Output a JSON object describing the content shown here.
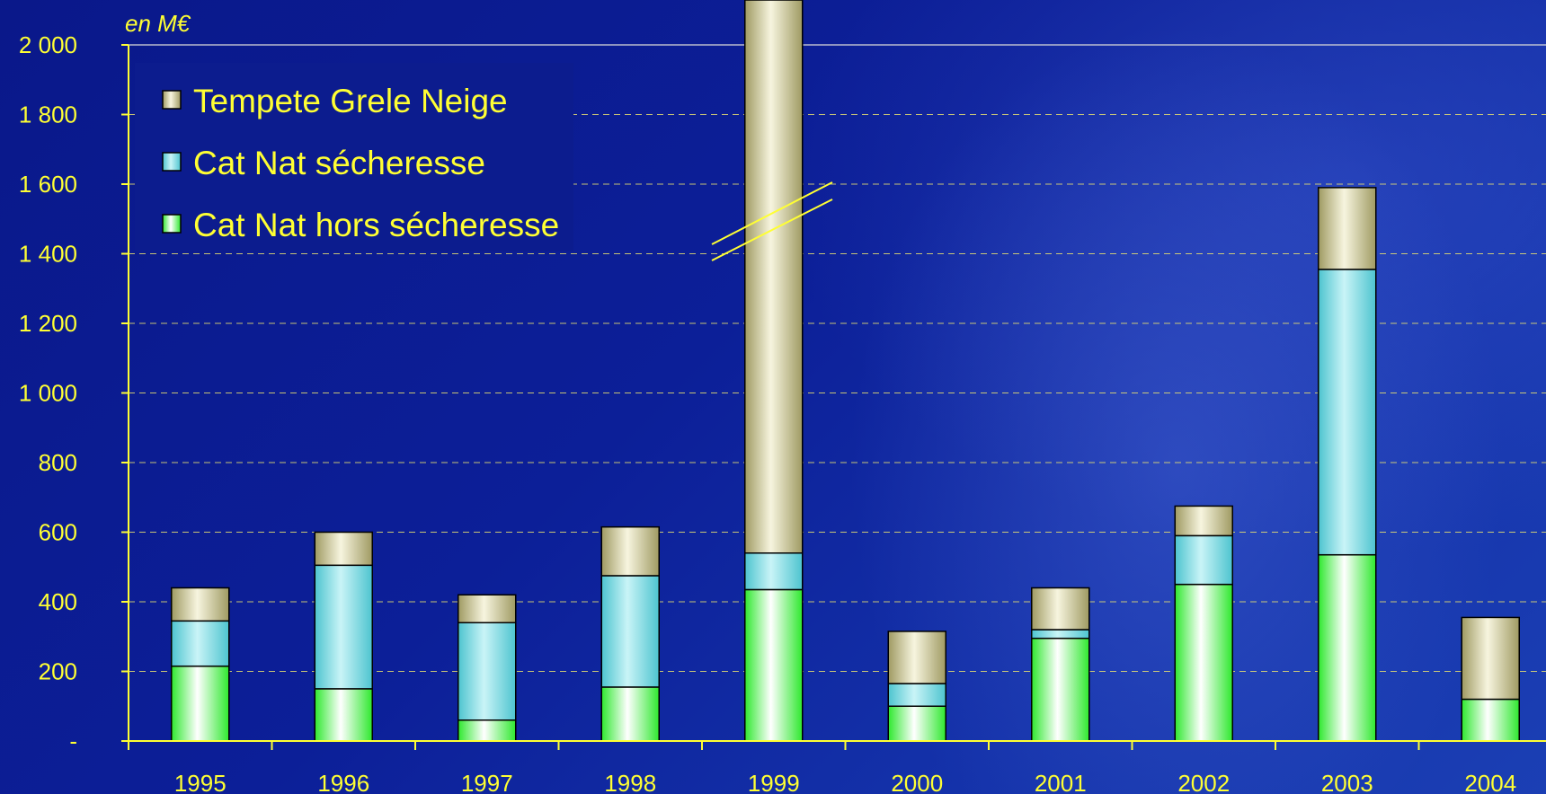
{
  "chart_data": {
    "type": "bar",
    "stacked": true,
    "unit_label": "en M€",
    "categories": [
      "1995",
      "1996",
      "1997",
      "1998",
      "1999",
      "2000",
      "2001",
      "2002",
      "2003",
      "2004"
    ],
    "series": [
      {
        "name": "Cat Nat hors sécheresse",
        "color": "#33ff33",
        "values": [
          215,
          150,
          60,
          155,
          435,
          100,
          295,
          450,
          535,
          120
        ]
      },
      {
        "name": "Cat Nat sécheresse",
        "color": "#66d9e0",
        "values": [
          130,
          355,
          280,
          320,
          105,
          65,
          25,
          140,
          820,
          0
        ]
      },
      {
        "name": "Tempete Grele Neige",
        "color": "#c8c48a",
        "values": [
          95,
          95,
          80,
          140,
          1500,
          150,
          120,
          85,
          235,
          235
        ]
      }
    ],
    "legend_order": [
      "Tempete Grele Neige",
      "Cat Nat sécheresse",
      "Cat Nat hors sécheresse"
    ],
    "ylim": [
      0,
      2000
    ],
    "y_ticks": [
      0,
      200,
      400,
      600,
      800,
      1000,
      1200,
      1400,
      1600,
      1800,
      2000
    ],
    "y_tick_labels": [
      "-",
      "200",
      "400",
      "600",
      "800",
      "1 000",
      "1 200",
      "1 400",
      "1 600",
      "1 800",
      "2 000"
    ],
    "axis_break": "1999",
    "grid": true,
    "legend_position": "top-left",
    "axis_color": "#ffff33",
    "text_color": "#ffff33"
  }
}
